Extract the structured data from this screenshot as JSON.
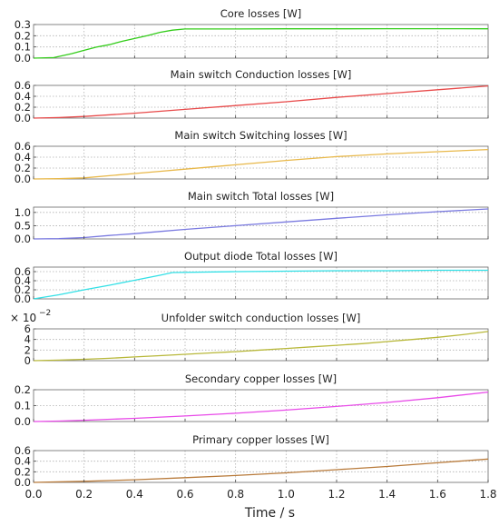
{
  "chart_data": [
    {
      "type": "line",
      "title": "Core losses [W]",
      "color": "#33cc1a",
      "xlim": [
        0,
        1.8
      ],
      "ylim": [
        0,
        0.3
      ],
      "yticks": [
        "0.0",
        "0.1",
        "0.2",
        "0.3"
      ],
      "grid": true,
      "series": [
        {
          "x": [
            0,
            0.08,
            0.15,
            0.2,
            0.25,
            0.3,
            0.35,
            0.4,
            0.45,
            0.5,
            0.55,
            0.6,
            0.8,
            1.0,
            1.2,
            1.4,
            1.6,
            1.8
          ],
          "y": [
            0,
            0.005,
            0.04,
            0.07,
            0.1,
            0.12,
            0.15,
            0.175,
            0.2,
            0.23,
            0.25,
            0.26,
            0.26,
            0.262,
            0.262,
            0.263,
            0.263,
            0.262
          ]
        }
      ]
    },
    {
      "type": "line",
      "title": "Main switch Conduction losses [W]",
      "color": "#e84a4a",
      "xlim": [
        0,
        1.8
      ],
      "ylim": [
        0,
        0.6
      ],
      "yticks": [
        "0.0",
        "0.2",
        "0.4",
        "0.6"
      ],
      "grid": true,
      "series": [
        {
          "x": [
            0,
            0.1,
            0.2,
            0.4,
            0.6,
            0.8,
            1.0,
            1.2,
            1.4,
            1.6,
            1.8
          ],
          "y": [
            0,
            0.01,
            0.03,
            0.09,
            0.16,
            0.23,
            0.3,
            0.38,
            0.45,
            0.52,
            0.59
          ]
        }
      ]
    },
    {
      "type": "line",
      "title": "Main switch Switching losses [W]",
      "color": "#e8b84a",
      "xlim": [
        0,
        1.8
      ],
      "ylim": [
        0,
        0.6
      ],
      "yticks": [
        "0.0",
        "0.2",
        "0.4",
        "0.6"
      ],
      "grid": true,
      "series": [
        {
          "x": [
            0,
            0.1,
            0.2,
            0.3,
            0.4,
            0.5,
            0.6,
            0.8,
            1.0,
            1.2,
            1.4,
            1.6,
            1.8
          ],
          "y": [
            0,
            0.005,
            0.02,
            0.06,
            0.1,
            0.14,
            0.18,
            0.26,
            0.34,
            0.41,
            0.46,
            0.5,
            0.54
          ]
        }
      ]
    },
    {
      "type": "line",
      "title": "Main switch Total losses [W]",
      "color": "#7a7ae0",
      "xlim": [
        0,
        1.8
      ],
      "ylim": [
        0,
        1.2
      ],
      "yticks": [
        "0.0",
        "0.5",
        "1.0"
      ],
      "grid": true,
      "series": [
        {
          "x": [
            0,
            0.1,
            0.2,
            0.3,
            0.4,
            0.5,
            0.6,
            0.8,
            1.0,
            1.2,
            1.4,
            1.6,
            1.8
          ],
          "y": [
            0,
            0.01,
            0.05,
            0.13,
            0.2,
            0.28,
            0.36,
            0.5,
            0.64,
            0.78,
            0.91,
            1.03,
            1.13
          ]
        }
      ]
    },
    {
      "type": "line",
      "title": "Output diode Total losses [W]",
      "color": "#33e0e6",
      "xlim": [
        0,
        1.8
      ],
      "ylim": [
        0,
        0.7
      ],
      "yticks": [
        "0.0",
        "0.2",
        "0.4",
        "0.6"
      ],
      "grid": true,
      "series": [
        {
          "x": [
            0,
            0.1,
            0.2,
            0.3,
            0.4,
            0.5,
            0.55,
            0.8,
            1.0,
            1.2,
            1.4,
            1.6,
            1.8
          ],
          "y": [
            0,
            0.09,
            0.2,
            0.3,
            0.41,
            0.52,
            0.58,
            0.6,
            0.61,
            0.62,
            0.62,
            0.63,
            0.63
          ]
        }
      ]
    },
    {
      "type": "line",
      "title": "Unfolder switch conduction losses [W]",
      "multiplier": "× 10",
      "multiplier_exp": "−2",
      "color": "#b8b83a",
      "xlim": [
        0,
        1.8
      ],
      "ylim": [
        0,
        6
      ],
      "yticks": [
        "0",
        "2",
        "4",
        "6"
      ],
      "grid": true,
      "series": [
        {
          "x": [
            0,
            0.1,
            0.2,
            0.3,
            0.4,
            0.5,
            0.6,
            0.7,
            0.8,
            0.9,
            1.0,
            1.1,
            1.2,
            1.3,
            1.4,
            1.5,
            1.6,
            1.7,
            1.8
          ],
          "y": [
            0,
            0.1,
            0.25,
            0.45,
            0.7,
            0.95,
            1.2,
            1.45,
            1.7,
            2.0,
            2.3,
            2.6,
            2.9,
            3.2,
            3.6,
            4.0,
            4.4,
            4.9,
            5.5
          ]
        }
      ]
    },
    {
      "type": "line",
      "title": "Secondary copper losses [W]",
      "color": "#e84ae8",
      "xlim": [
        0,
        1.8
      ],
      "ylim": [
        0,
        0.2
      ],
      "yticks": [
        "0.0",
        "0.1",
        "0.2"
      ],
      "grid": true,
      "series": [
        {
          "x": [
            0,
            0.1,
            0.2,
            0.4,
            0.6,
            0.8,
            1.0,
            1.2,
            1.4,
            1.6,
            1.8
          ],
          "y": [
            0,
            0.003,
            0.008,
            0.02,
            0.035,
            0.052,
            0.072,
            0.095,
            0.12,
            0.15,
            0.185
          ]
        }
      ]
    },
    {
      "type": "line",
      "title": "Primary copper losses [W]",
      "color": "#b87a3a",
      "xlim": [
        0,
        1.8
      ],
      "ylim": [
        0,
        0.6
      ],
      "yticks": [
        "0.0",
        "0.2",
        "0.4",
        "0.6"
      ],
      "grid": true,
      "series": [
        {
          "x": [
            0,
            0.2,
            0.4,
            0.6,
            0.8,
            1.0,
            1.2,
            1.4,
            1.6,
            1.8
          ],
          "y": [
            0,
            0.02,
            0.05,
            0.09,
            0.13,
            0.18,
            0.24,
            0.3,
            0.37,
            0.44
          ]
        }
      ]
    }
  ],
  "x_axis": {
    "label": "Time / s",
    "ticks": [
      "0.0",
      "0.2",
      "0.4",
      "0.6",
      "0.8",
      "1.0",
      "1.2",
      "1.4",
      "1.6",
      "1.8"
    ],
    "tick_values": [
      0,
      0.2,
      0.4,
      0.6,
      0.8,
      1.0,
      1.2,
      1.4,
      1.6,
      1.8
    ]
  }
}
